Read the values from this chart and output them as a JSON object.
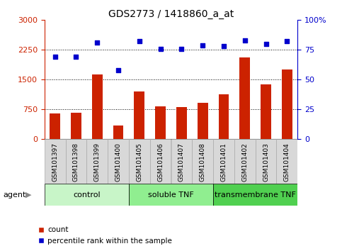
{
  "title": "GDS2773 / 1418860_a_at",
  "samples": [
    "GSM101397",
    "GSM101398",
    "GSM101399",
    "GSM101400",
    "GSM101405",
    "GSM101406",
    "GSM101407",
    "GSM101408",
    "GSM101401",
    "GSM101402",
    "GSM101403",
    "GSM101404"
  ],
  "counts": [
    640,
    670,
    1620,
    340,
    1200,
    820,
    800,
    920,
    1120,
    2050,
    1380,
    1750
  ],
  "percentiles": [
    69,
    69,
    81,
    58,
    82,
    76,
    76,
    79,
    78,
    83,
    80,
    82
  ],
  "groups": [
    {
      "label": "control",
      "start": 0,
      "end": 4,
      "color": "#c8f5c8"
    },
    {
      "label": "soluble TNF",
      "start": 4,
      "end": 8,
      "color": "#90ee90"
    },
    {
      "label": "transmembrane TNF",
      "start": 8,
      "end": 12,
      "color": "#50d050"
    }
  ],
  "bar_color": "#cc2200",
  "dot_color": "#0000cc",
  "left_ylim": [
    0,
    3000
  ],
  "right_ylim": [
    0,
    100
  ],
  "left_yticks": [
    0,
    750,
    1500,
    2250,
    3000
  ],
  "right_yticks": [
    0,
    25,
    50,
    75,
    100
  ],
  "grid_values": [
    750,
    1500,
    2250
  ],
  "background_color": "#ffffff",
  "tick_label_color_left": "#cc2200",
  "tick_label_color_right": "#0000cc",
  "agent_label": "agent",
  "legend_items": [
    {
      "label": "count",
      "color": "#cc2200"
    },
    {
      "label": "percentile rank within the sample",
      "color": "#0000cc"
    }
  ],
  "figsize": [
    4.83,
    3.54
  ],
  "dpi": 100,
  "xtick_bg": "#d8d8d8",
  "xtick_border": "#888888"
}
